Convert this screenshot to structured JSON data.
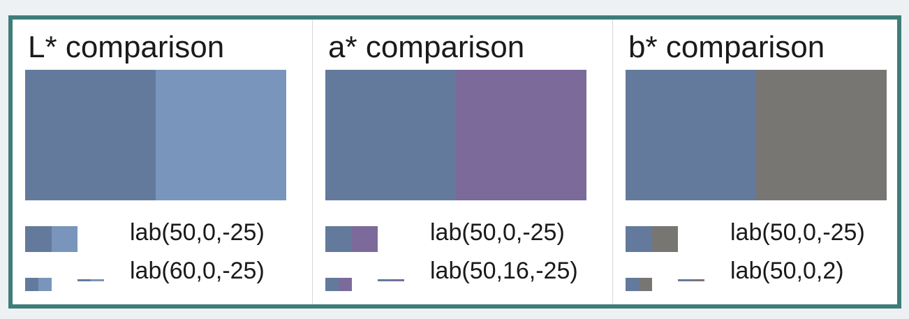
{
  "panels": [
    {
      "title": "L* comparison",
      "color_a": "#647a9c",
      "color_b": "#7a95bb",
      "label_a": "lab(50,0,-25)",
      "label_b": "lab(60,0,-25)"
    },
    {
      "title": "a* comparison",
      "color_a": "#647a9c",
      "color_b": "#7c6a9b",
      "label_a": "lab(50,0,-25)",
      "label_b": "lab(50,16,-25)"
    },
    {
      "title": "b* comparison",
      "color_a": "#647a9c",
      "color_b": "#777673",
      "label_a": "lab(50,0,-25)",
      "label_b": "lab(50,0,2)"
    }
  ]
}
